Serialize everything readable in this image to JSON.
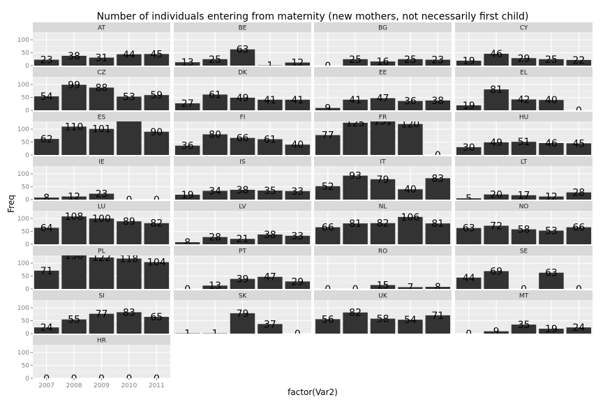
{
  "chart_data": {
    "type": "bar",
    "title": "Number of individuals entering from maternity (new mothers, not necessarily first child)",
    "xlabel": "factor(Var2)",
    "ylabel": "Freq",
    "categories": [
      "2007",
      "2008",
      "2009",
      "2010",
      "2011"
    ],
    "y_ticks": [
      "0",
      "50",
      "100"
    ],
    "ylim": [
      0,
      130
    ],
    "colors": {
      "bar": "#333333",
      "panel": "#ebebeb",
      "strip": "#d9d9d9",
      "grid": "#ffffff"
    },
    "panels": [
      {
        "name": "AT",
        "values": [
          23,
          38,
          31,
          44,
          45
        ],
        "labels": [
          "23",
          "38",
          "31",
          "44",
          "45"
        ]
      },
      {
        "name": "BE",
        "values": [
          13,
          25,
          63,
          1,
          12
        ],
        "labels": [
          "13",
          "25",
          "63",
          "1",
          "12"
        ]
      },
      {
        "name": "BG",
        "values": [
          0,
          25,
          16,
          25,
          23
        ],
        "labels": [
          "0",
          "25",
          "16",
          "25",
          "23"
        ]
      },
      {
        "name": "CY",
        "values": [
          19,
          46,
          29,
          25,
          22
        ],
        "labels": [
          "19",
          "46",
          "29",
          "25",
          "22"
        ]
      },
      {
        "name": "CZ",
        "values": [
          54,
          99,
          88,
          53,
          59
        ],
        "labels": [
          "54",
          "99",
          "88",
          "53",
          "59"
        ]
      },
      {
        "name": "DK",
        "values": [
          27,
          61,
          49,
          41,
          41
        ],
        "labels": [
          "27",
          "61",
          "49",
          "41",
          "41"
        ]
      },
      {
        "name": "EE",
        "values": [
          9,
          41,
          47,
          36,
          38
        ],
        "labels": [
          "9",
          "41",
          "47",
          "36",
          "38"
        ]
      },
      {
        "name": "EL",
        "values": [
          19,
          81,
          42,
          40,
          0
        ],
        "labels": [
          "19",
          "81",
          "42",
          "40",
          "0"
        ]
      },
      {
        "name": "ES",
        "values": [
          62,
          110,
          101,
          140,
          90
        ],
        "labels": [
          "62",
          "110",
          "101",
          "",
          "90"
        ]
      },
      {
        "name": "FI",
        "values": [
          36,
          80,
          66,
          61,
          40
        ],
        "labels": [
          "36",
          "80",
          "66",
          "61",
          "40"
        ]
      },
      {
        "name": "FR",
        "values": [
          77,
          125,
          131,
          120,
          0
        ],
        "labels": [
          "77",
          "125",
          "131",
          "120",
          "0"
        ]
      },
      {
        "name": "HU",
        "values": [
          30,
          49,
          51,
          46,
          45
        ],
        "labels": [
          "30",
          "49",
          "51",
          "46",
          "45"
        ]
      },
      {
        "name": "IE",
        "values": [
          8,
          12,
          23,
          0,
          0
        ],
        "labels": [
          "8",
          "12",
          "23",
          "0",
          "0"
        ]
      },
      {
        "name": "IS",
        "values": [
          19,
          34,
          38,
          35,
          33
        ],
        "labels": [
          "19",
          "34",
          "38",
          "35",
          "33"
        ]
      },
      {
        "name": "IT",
        "values": [
          52,
          93,
          79,
          40,
          83
        ],
        "labels": [
          "52",
          "93",
          "79",
          "40",
          "83"
        ]
      },
      {
        "name": "LT",
        "values": [
          5,
          20,
          17,
          12,
          28
        ],
        "labels": [
          "5",
          "20",
          "17",
          "12",
          "28"
        ]
      },
      {
        "name": "LU",
        "values": [
          64,
          108,
          100,
          89,
          82
        ],
        "labels": [
          "64",
          "108",
          "100",
          "89",
          "82"
        ]
      },
      {
        "name": "LV",
        "values": [
          8,
          28,
          21,
          38,
          33
        ],
        "labels": [
          "8",
          "28",
          "21",
          "38",
          "33"
        ]
      },
      {
        "name": "NL",
        "values": [
          66,
          81,
          82,
          106,
          81
        ],
        "labels": [
          "66",
          "81",
          "82",
          "106",
          "81"
        ]
      },
      {
        "name": "NO",
        "values": [
          63,
          72,
          58,
          53,
          66
        ],
        "labels": [
          "63",
          "72",
          "58",
          "53",
          "66"
        ]
      },
      {
        "name": "PL",
        "values": [
          71,
          130,
          122,
          118,
          104
        ],
        "labels": [
          "71",
          "130",
          "122",
          "118",
          "104"
        ]
      },
      {
        "name": "PT",
        "values": [
          0,
          13,
          39,
          47,
          29
        ],
        "labels": [
          "0",
          "13",
          "39",
          "47",
          "29"
        ]
      },
      {
        "name": "RO",
        "values": [
          0,
          0,
          15,
          7,
          8
        ],
        "labels": [
          "0",
          "0",
          "15",
          "7",
          "8"
        ]
      },
      {
        "name": "SE",
        "values": [
          44,
          69,
          0,
          63,
          0
        ],
        "labels": [
          "44",
          "69",
          "0",
          "63",
          "0"
        ]
      },
      {
        "name": "SI",
        "values": [
          24,
          55,
          77,
          83,
          65
        ],
        "labels": [
          "24",
          "55",
          "77",
          "83",
          "65"
        ]
      },
      {
        "name": "SK",
        "values": [
          1,
          1,
          79,
          37,
          0
        ],
        "labels": [
          "1",
          "1",
          "79",
          "37",
          "0"
        ]
      },
      {
        "name": "UK",
        "values": [
          56,
          82,
          58,
          54,
          71
        ],
        "labels": [
          "56",
          "82",
          "58",
          "54",
          "71"
        ]
      },
      {
        "name": "MT",
        "values": [
          0,
          9,
          35,
          19,
          24
        ],
        "labels": [
          "0",
          "9",
          "35",
          "19",
          "24"
        ]
      },
      {
        "name": "HR",
        "values": [
          0,
          0,
          0,
          0,
          0
        ],
        "labels": [
          "0",
          "0",
          "0",
          "0",
          "0"
        ]
      }
    ]
  }
}
